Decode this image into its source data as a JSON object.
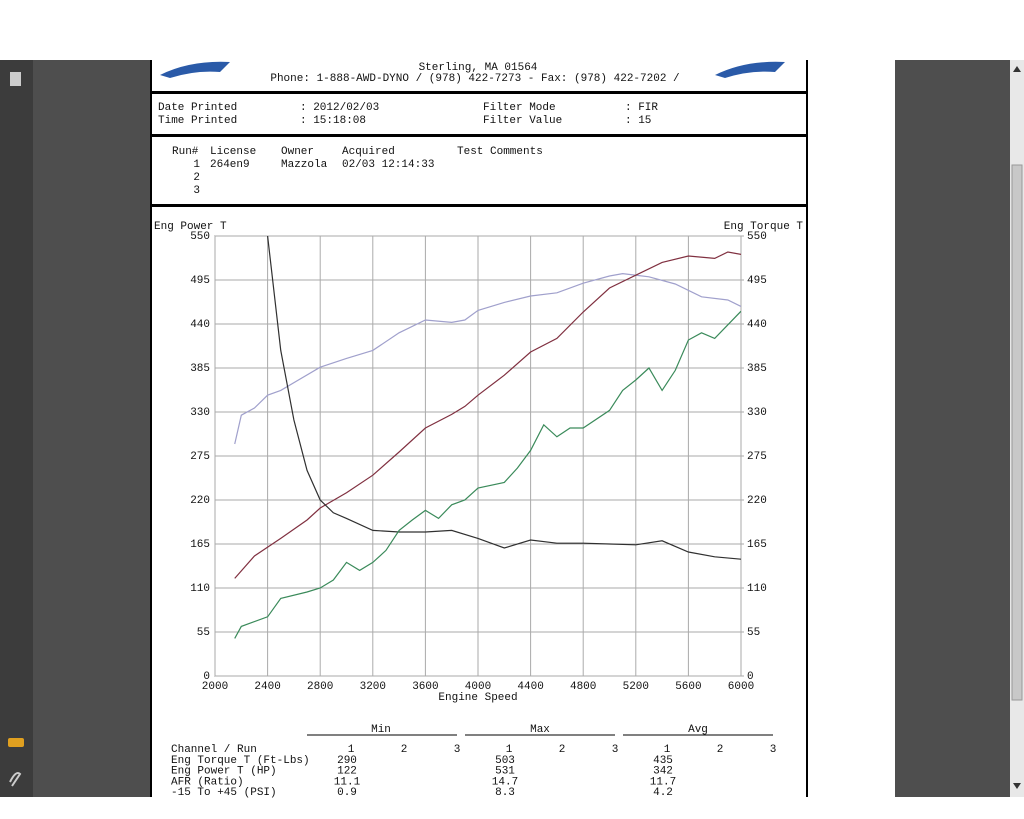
{
  "header": {
    "address": "Sterling, MA  01564",
    "phone": "Phone: 1-888-AWD-DYNO / (978) 422-7273 - Fax: (978) 422-7202 /"
  },
  "info": {
    "rows": [
      [
        "Date Printed",
        ": 2012/02/03",
        "Filter Mode",
        ": FIR"
      ],
      [
        "Time Printed",
        ": 15:18:08",
        "Filter Value",
        ": 15"
      ]
    ]
  },
  "runs": {
    "columns": [
      "Run#",
      "License",
      "Owner",
      "Acquired",
      "Test Comments"
    ],
    "rows": [
      [
        "1",
        "264en9",
        "Mazzola",
        "02/03 12:14:33"
      ],
      [
        "2"
      ],
      [
        "3"
      ]
    ]
  },
  "chart_data": {
    "type": "line",
    "ylabel": "Eng Power T",
    "y2label": "Eng Torque T",
    "xlabel": "Engine Speed",
    "xlim": [
      2000,
      6000
    ],
    "xticks": [
      2000,
      2400,
      2800,
      3200,
      3600,
      4000,
      4400,
      4800,
      5200,
      5600,
      6000
    ],
    "ylim": [
      0,
      550
    ],
    "yticks": [
      0,
      55,
      110,
      165,
      220,
      275,
      330,
      385,
      440,
      495,
      550
    ],
    "y2lim": [
      0,
      550
    ],
    "y2ticks": [
      0,
      55,
      110,
      165,
      220,
      275,
      330,
      385,
      440,
      495,
      550
    ],
    "grid": true,
    "series": [
      {
        "color": "#a0a0cc",
        "axis": "y2",
        "x": [
          2150,
          2200,
          2300,
          2400,
          2500,
          2800,
          3000,
          3200,
          3400,
          3600,
          3800,
          3900,
          4000,
          4200,
          4400,
          4600,
          4800,
          5000,
          5100,
          5300,
          5500,
          5700,
          5900,
          6000
        ],
        "values": [
          290,
          326,
          335,
          351,
          357,
          386,
          397,
          407,
          429,
          445,
          442,
          445,
          457,
          467,
          475,
          479,
          491,
          500,
          503,
          499,
          490,
          474,
          470,
          462
        ]
      },
      {
        "color": "#803040",
        "x": [
          2150,
          2300,
          2500,
          2700,
          2800,
          3000,
          3200,
          3400,
          3600,
          3800,
          3900,
          4000,
          4200,
          4400,
          4600,
          4800,
          5000,
          5200,
          5400,
          5600,
          5800,
          5900,
          6000
        ],
        "values": [
          122,
          150,
          172,
          195,
          210,
          229,
          251,
          280,
          310,
          327,
          337,
          351,
          376,
          405,
          422,
          455,
          485,
          501,
          517,
          525,
          522,
          530,
          527
        ]
      },
      {
        "color": "#303030",
        "x": [
          2400,
          2500,
          2600,
          2700,
          2800,
          2900,
          3000,
          3200,
          3400,
          3600,
          3800,
          4000,
          4200,
          4400,
          4600,
          4800,
          5000,
          5200,
          5400,
          5600,
          5800,
          6000
        ],
        "values": [
          550,
          407,
          320,
          257,
          220,
          204,
          197,
          182,
          180,
          180,
          182,
          172,
          160,
          170,
          166,
          166,
          165,
          164,
          169,
          155,
          149,
          146
        ]
      },
      {
        "color": "#3a8a5a",
        "x": [
          2150,
          2200,
          2400,
          2500,
          2700,
          2800,
          2900,
          3000,
          3100,
          3200,
          3300,
          3400,
          3500,
          3600,
          3700,
          3800,
          3900,
          4000,
          4200,
          4300,
          4400,
          4500,
          4600,
          4700,
          4800,
          5000,
          5100,
          5200,
          5300,
          5400,
          5500,
          5600,
          5700,
          5800,
          5900,
          6000
        ],
        "values": [
          47,
          62,
          74,
          97,
          105,
          110,
          120,
          142,
          132,
          142,
          157,
          182,
          195,
          207,
          197,
          214,
          220,
          235,
          242,
          260,
          282,
          314,
          299,
          310,
          310,
          332,
          357,
          370,
          385,
          357,
          382,
          420,
          429,
          422,
          439,
          456
        ]
      }
    ]
  },
  "stats": {
    "groups": [
      "Min",
      "Max",
      "Avg"
    ],
    "header": "Channel / Run",
    "runs": [
      "1",
      "2",
      "3"
    ],
    "rows": [
      {
        "label": "Eng Torque T (Ft-Lbs)",
        "color": "#a0a0cc",
        "cells": [
          "290",
          "503",
          "435"
        ]
      },
      {
        "label": "Eng Power T (HP)",
        "color": "#303030",
        "cells": [
          "122",
          "531",
          "342"
        ]
      },
      {
        "label": "AFR (Ratio)",
        "color": "#303030",
        "cells": [
          "11.1",
          "14.7",
          "11.7"
        ]
      },
      {
        "label": "-15 To +45 (PSI)",
        "color": "#3a8a5a",
        "cells": [
          "0.9",
          "8.3",
          "4.2"
        ]
      }
    ]
  }
}
